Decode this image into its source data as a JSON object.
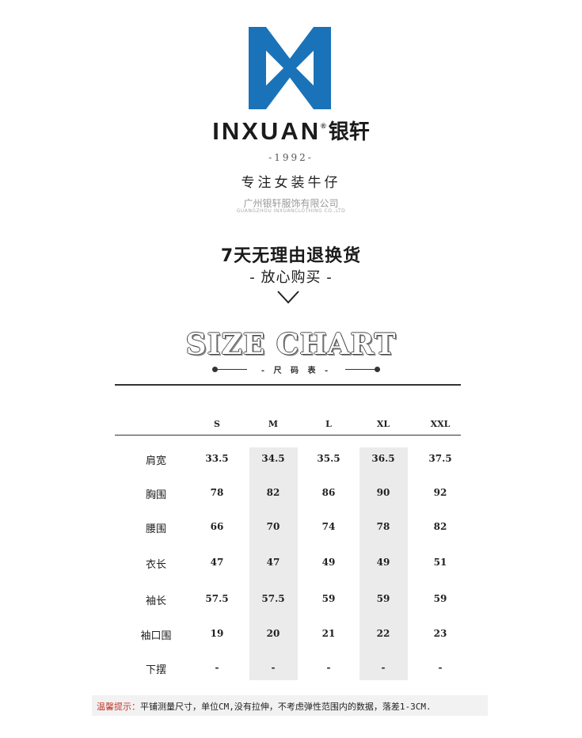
{
  "brand": {
    "name_en": "INXUAN",
    "name_cn": "银轩",
    "logo_color": "#1a73b8",
    "year": "-1992-",
    "tagline": "专注女装牛仔",
    "company_cn": "广州银轩服饰有限公司",
    "company_en": "GUANGZHOU INXUANCLOTHING CO.,LTD"
  },
  "promo": {
    "headline": "7天无理由退换货",
    "subline": "- 放心购买 -"
  },
  "size_chart": {
    "title": "SIZE CHART",
    "subtitle": "- 尺 码 表 -",
    "sizes": [
      "S",
      "M",
      "L",
      "XL",
      "XXL"
    ],
    "rows": [
      {
        "label": "肩宽",
        "values": [
          "33.5",
          "34.5",
          "35.5",
          "36.5",
          "37.5"
        ]
      },
      {
        "label": "胸围",
        "values": [
          "78",
          "82",
          "86",
          "90",
          "92"
        ]
      },
      {
        "label": "腰围",
        "values": [
          "66",
          "70",
          "74",
          "78",
          "82"
        ]
      },
      {
        "label": "衣长",
        "values": [
          "47",
          "47",
          "49",
          "49",
          "51"
        ]
      },
      {
        "label": "袖长",
        "values": [
          "57.5",
          "57.5",
          "59",
          "59",
          "59"
        ]
      },
      {
        "label": "袖口围",
        "values": [
          "19",
          "20",
          "21",
          "22",
          "23"
        ]
      },
      {
        "label": "下摆",
        "values": [
          "-",
          "-",
          "-",
          "-",
          "-"
        ]
      }
    ]
  },
  "note": {
    "label": "温馨提示：",
    "text": "平铺测量尺寸，单位CM,没有拉伸，不考虑弹性范围内的数据，落差1-3CM.",
    "label_color": "#c0392b"
  }
}
